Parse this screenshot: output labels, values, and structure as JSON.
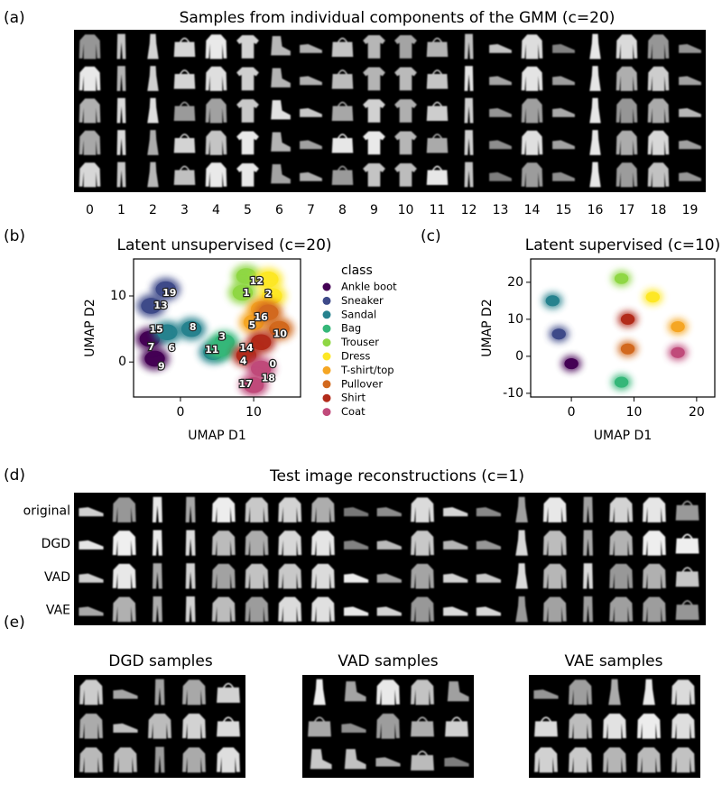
{
  "panel_labels": [
    "(a)",
    "(b)",
    "(c)",
    "(d)",
    "(e)"
  ],
  "panel_a": {
    "title": "Samples from individual components of the GMM (c=20)",
    "columns": [
      "0",
      "1",
      "2",
      "3",
      "4",
      "5",
      "6",
      "7",
      "8",
      "9",
      "10",
      "11",
      "12",
      "13",
      "14",
      "15",
      "16",
      "17",
      "18",
      "19"
    ]
  },
  "chart_data": [
    {
      "type": "scatter",
      "title": "Latent unsupervised (c=20)",
      "xlabel": "UMAP D1",
      "ylabel": "UMAP D2",
      "xlim": [
        -6.4,
        16.4
      ],
      "ylim": [
        -5.3,
        15.6
      ],
      "xticks": [
        0,
        10
      ],
      "yticks": [
        0,
        10
      ],
      "legend_title": "class",
      "series": [
        {
          "name": "Ankle boot",
          "color": "#440154",
          "x": [
            -3.5,
            -4.2
          ],
          "y": [
            0.5,
            3.5
          ]
        },
        {
          "name": "Sneaker",
          "color": "#3e4a89",
          "x": [
            -2,
            -4
          ],
          "y": [
            11,
            8.5
          ]
        },
        {
          "name": "Sandal",
          "color": "#26828e",
          "x": [
            -1.8,
            1.5,
            4.5
          ],
          "y": [
            4.5,
            5,
            1.5
          ]
        },
        {
          "name": "Bag",
          "color": "#35b779",
          "x": [
            6,
            5.5
          ],
          "y": [
            3,
            2
          ]
        },
        {
          "name": "Trouser",
          "color": "#8fd744",
          "x": [
            9,
            8.5
          ],
          "y": [
            13,
            10.5
          ]
        },
        {
          "name": "Dress",
          "color": "#fde725",
          "x": [
            12,
            12.5
          ],
          "y": [
            12.5,
            10
          ]
        },
        {
          "name": "T-shirt/top",
          "color": "#f5a623",
          "x": [
            11,
            10
          ],
          "y": [
            8,
            6
          ]
        },
        {
          "name": "Pullover",
          "color": "#d2691e",
          "x": [
            13.5,
            12
          ],
          "y": [
            5,
            7.5
          ]
        },
        {
          "name": "Shirt",
          "color": "#b22b1a",
          "x": [
            11,
            9
          ],
          "y": [
            3,
            1
          ]
        },
        {
          "name": "Coat",
          "color": "#c04a7a",
          "x": [
            11,
            10
          ],
          "y": [
            -1,
            -3.5
          ]
        }
      ],
      "annotations": [
        {
          "text": "19",
          "x": -1.5,
          "y": 10.4
        },
        {
          "text": "13",
          "x": -2.7,
          "y": 8.5
        },
        {
          "text": "15",
          "x": -3.3,
          "y": 4.9
        },
        {
          "text": "7",
          "x": -4.0,
          "y": 2.2
        },
        {
          "text": "6",
          "x": -1.2,
          "y": 2.1
        },
        {
          "text": "9",
          "x": -2.6,
          "y": -0.7
        },
        {
          "text": "8",
          "x": 1.7,
          "y": 5.2
        },
        {
          "text": "3",
          "x": 5.7,
          "y": 3.8
        },
        {
          "text": "11",
          "x": 4.3,
          "y": 1.8
        },
        {
          "text": "12",
          "x": 10.4,
          "y": 12.2
        },
        {
          "text": "1",
          "x": 9.0,
          "y": 10.4
        },
        {
          "text": "2",
          "x": 12.0,
          "y": 10.3
        },
        {
          "text": "16",
          "x": 11.0,
          "y": 6.7
        },
        {
          "text": "5",
          "x": 9.8,
          "y": 5.5
        },
        {
          "text": "10",
          "x": 13.6,
          "y": 4.2
        },
        {
          "text": "14",
          "x": 9.0,
          "y": 2.1
        },
        {
          "text": "4",
          "x": 8.6,
          "y": 0.1
        },
        {
          "text": "0",
          "x": 12.6,
          "y": -0.4
        },
        {
          "text": "18",
          "x": 12.0,
          "y": -2.5
        },
        {
          "text": "17",
          "x": 8.9,
          "y": -3.4
        }
      ]
    },
    {
      "type": "scatter",
      "title": "Latent supervised (c=10)",
      "xlabel": "UMAP D1",
      "ylabel": "UMAP D2",
      "xlim": [
        -6.5,
        22.9
      ],
      "ylim": [
        -11,
        26.3
      ],
      "xticks": [
        0,
        10,
        20
      ],
      "yticks": [
        -10,
        0,
        10,
        20
      ],
      "series": [
        {
          "name": "Ankle boot",
          "color": "#440154",
          "x": [
            0
          ],
          "y": [
            -2
          ]
        },
        {
          "name": "Sneaker",
          "color": "#3e4a89",
          "x": [
            -2
          ],
          "y": [
            6
          ]
        },
        {
          "name": "Sandal",
          "color": "#26828e",
          "x": [
            -3
          ],
          "y": [
            15
          ]
        },
        {
          "name": "Bag",
          "color": "#35b779",
          "x": [
            8
          ],
          "y": [
            -7
          ]
        },
        {
          "name": "Trouser",
          "color": "#8fd744",
          "x": [
            8
          ],
          "y": [
            21
          ]
        },
        {
          "name": "Dress",
          "color": "#fde725",
          "x": [
            13
          ],
          "y": [
            16
          ]
        },
        {
          "name": "T-shirt/top",
          "color": "#f5a623",
          "x": [
            17
          ],
          "y": [
            8
          ]
        },
        {
          "name": "Pullover",
          "color": "#d2691e",
          "x": [
            9
          ],
          "y": [
            2
          ]
        },
        {
          "name": "Shirt",
          "color": "#b22b1a",
          "x": [
            9
          ],
          "y": [
            10
          ]
        },
        {
          "name": "Coat",
          "color": "#c04a7a",
          "x": [
            17
          ],
          "y": [
            1
          ]
        }
      ]
    }
  ],
  "panel_d": {
    "title": "Test image reconstructions (c=1)",
    "rows": [
      "original",
      "DGD",
      "VAD",
      "VAE"
    ]
  },
  "panel_e": {
    "titles": [
      "DGD samples",
      "VAD samples",
      "VAE samples"
    ]
  }
}
